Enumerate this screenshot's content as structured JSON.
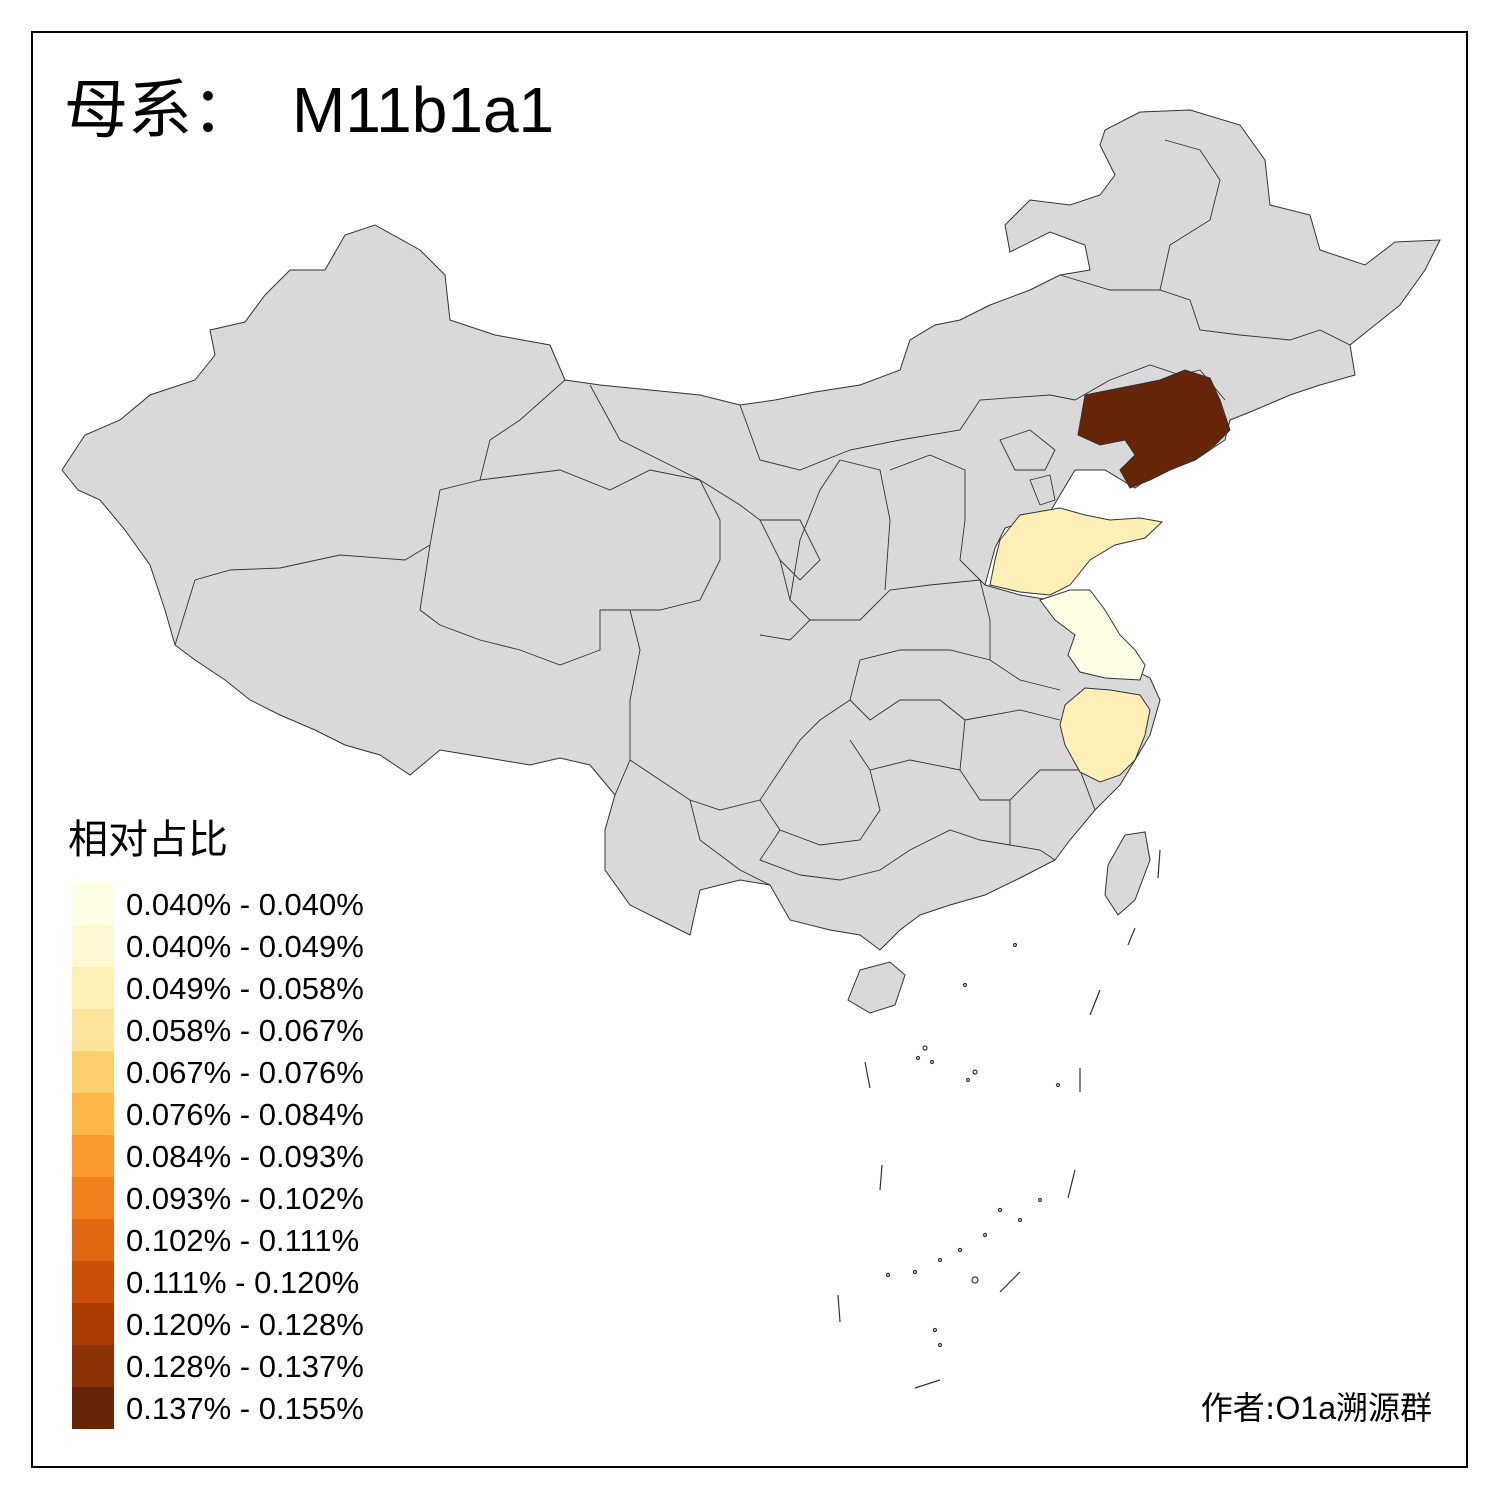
{
  "title": {
    "prefix": "母系：",
    "haplogroup": "M11b1a1"
  },
  "legend": {
    "title": "相对占比",
    "items": [
      {
        "label": "0.040% - 0.040%",
        "color": "#FFFFE5"
      },
      {
        "label": "0.040% - 0.049%",
        "color": "#FFF8D2"
      },
      {
        "label": "0.049% - 0.058%",
        "color": "#FEEFB7"
      },
      {
        "label": "0.058% - 0.067%",
        "color": "#FEE39A"
      },
      {
        "label": "0.067% - 0.076%",
        "color": "#FED06C"
      },
      {
        "label": "0.076% - 0.084%",
        "color": "#FEB746"
      },
      {
        "label": "0.084% - 0.093%",
        "color": "#FB9A2C"
      },
      {
        "label": "0.093% - 0.102%",
        "color": "#F1801D"
      },
      {
        "label": "0.102% - 0.111%",
        "color": "#E16712"
      },
      {
        "label": "0.111% - 0.120%",
        "color": "#CB4E06"
      },
      {
        "label": "0.120% - 0.128%",
        "color": "#AA3C03"
      },
      {
        "label": "0.128% - 0.137%",
        "color": "#8A3105"
      },
      {
        "label": "0.137% - 0.155%",
        "color": "#662506"
      }
    ]
  },
  "map": {
    "base_color": "#D9D9D9",
    "border_color": "#333333",
    "highlighted": [
      {
        "id": "liaoning",
        "color": "#662506"
      },
      {
        "id": "shandong",
        "color": "#FEEFB7"
      },
      {
        "id": "jiangsu",
        "color": "#FFFFE5"
      },
      {
        "id": "zhejiang",
        "color": "#FEEFB7"
      }
    ]
  },
  "credit": {
    "prefix": "作者:",
    "name": "O1a溯源群"
  }
}
